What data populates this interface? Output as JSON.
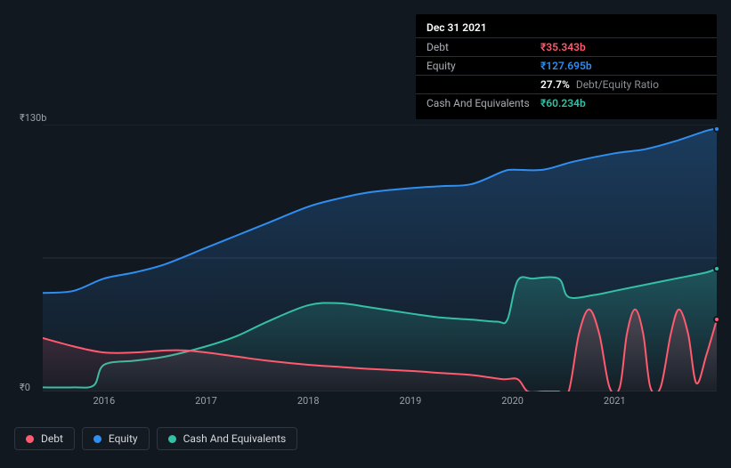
{
  "tooltip": {
    "date": "Dec 31 2021",
    "rows": [
      {
        "label": "Debt",
        "value": "₹35.343b",
        "color": "#ff5a6e"
      },
      {
        "label": "Equity",
        "value": "₹127.695b",
        "color": "#2f8ef0"
      },
      {
        "label": "",
        "value": "27.7%",
        "suffix": "Debt/Equity Ratio",
        "color": "#ffffff"
      },
      {
        "label": "Cash And Equivalents",
        "value": "₹60.234b",
        "color": "#34c0a6"
      }
    ]
  },
  "chart": {
    "type": "area",
    "background_color": "#12181f",
    "grid_color": "#2a3038",
    "ylim": [
      0,
      130
    ],
    "y_ticks": [
      {
        "v": 130,
        "label": "₹130b"
      },
      {
        "v": 0,
        "label": "₹0"
      }
    ],
    "x_start_year": 2015.4,
    "x_end_year": 2022.0,
    "x_ticks": [
      2016,
      2017,
      2018,
      2019,
      2020,
      2021
    ],
    "series": [
      {
        "name": "Equity",
        "color": "#2f8ef0",
        "fill_top": "rgba(47,142,240,0.30)",
        "fill_bottom": "rgba(47,142,240,0.02)",
        "line_width": 2,
        "points": [
          [
            2015.4,
            48
          ],
          [
            2015.7,
            49
          ],
          [
            2016.0,
            55
          ],
          [
            2016.3,
            58
          ],
          [
            2016.6,
            62
          ],
          [
            2017.0,
            70
          ],
          [
            2017.3,
            76
          ],
          [
            2017.6,
            82
          ],
          [
            2018.0,
            90
          ],
          [
            2018.3,
            94
          ],
          [
            2018.6,
            97
          ],
          [
            2019.0,
            99
          ],
          [
            2019.3,
            100
          ],
          [
            2019.6,
            101
          ],
          [
            2019.9,
            107
          ],
          [
            2020.0,
            108
          ],
          [
            2020.3,
            108
          ],
          [
            2020.6,
            112
          ],
          [
            2021.0,
            116
          ],
          [
            2021.3,
            118
          ],
          [
            2021.6,
            122
          ],
          [
            2021.9,
            127
          ],
          [
            2022.0,
            128
          ]
        ]
      },
      {
        "name": "Cash And Equivalents",
        "color": "#34c0a6",
        "fill_top": "rgba(52,192,166,0.28)",
        "fill_bottom": "rgba(52,192,166,0.02)",
        "line_width": 2,
        "points": [
          [
            2015.4,
            2
          ],
          [
            2015.7,
            2
          ],
          [
            2015.9,
            3
          ],
          [
            2016.0,
            13
          ],
          [
            2016.3,
            15
          ],
          [
            2016.6,
            17
          ],
          [
            2017.0,
            22
          ],
          [
            2017.3,
            27
          ],
          [
            2017.6,
            34
          ],
          [
            2018.0,
            42
          ],
          [
            2018.3,
            43
          ],
          [
            2018.6,
            41
          ],
          [
            2019.0,
            38
          ],
          [
            2019.3,
            36
          ],
          [
            2019.6,
            35
          ],
          [
            2019.85,
            34
          ],
          [
            2019.95,
            35
          ],
          [
            2020.05,
            54
          ],
          [
            2020.2,
            55
          ],
          [
            2020.45,
            55
          ],
          [
            2020.55,
            46
          ],
          [
            2020.8,
            47
          ],
          [
            2021.0,
            49
          ],
          [
            2021.3,
            52
          ],
          [
            2021.6,
            55
          ],
          [
            2021.9,
            58
          ],
          [
            2022.0,
            60
          ]
        ]
      },
      {
        "name": "Debt",
        "color": "#ff5a6e",
        "fill_top": "rgba(255,90,110,0.22)",
        "fill_bottom": "rgba(255,90,110,0.02)",
        "line_width": 2,
        "points": [
          [
            2015.4,
            26
          ],
          [
            2015.7,
            22
          ],
          [
            2016.0,
            19
          ],
          [
            2016.3,
            19
          ],
          [
            2016.6,
            20
          ],
          [
            2016.8,
            20
          ],
          [
            2017.0,
            19
          ],
          [
            2017.3,
            17
          ],
          [
            2017.6,
            15
          ],
          [
            2018.0,
            13
          ],
          [
            2018.3,
            12
          ],
          [
            2018.6,
            11
          ],
          [
            2019.0,
            10
          ],
          [
            2019.3,
            9
          ],
          [
            2019.6,
            8
          ],
          [
            2019.9,
            6
          ],
          [
            2020.05,
            6
          ],
          [
            2020.15,
            0
          ],
          [
            2020.3,
            0
          ],
          [
            2020.45,
            0
          ],
          [
            2020.55,
            0
          ],
          [
            2020.65,
            28
          ],
          [
            2020.75,
            40
          ],
          [
            2020.85,
            28
          ],
          [
            2020.95,
            2
          ],
          [
            2021.05,
            2
          ],
          [
            2021.12,
            28
          ],
          [
            2021.2,
            40
          ],
          [
            2021.28,
            28
          ],
          [
            2021.35,
            2
          ],
          [
            2021.45,
            2
          ],
          [
            2021.55,
            28
          ],
          [
            2021.63,
            40
          ],
          [
            2021.72,
            28
          ],
          [
            2021.8,
            4
          ],
          [
            2021.9,
            18
          ],
          [
            2022.0,
            35
          ]
        ]
      }
    ],
    "end_markers": [
      {
        "series": "Equity",
        "color": "#2f8ef0",
        "y": 128
      },
      {
        "series": "Cash And Equivalents",
        "color": "#34c0a6",
        "y": 60
      },
      {
        "series": "Debt",
        "color": "#ff5a6e",
        "y": 35
      }
    ]
  },
  "legend": [
    {
      "label": "Debt",
      "color": "#ff5a6e"
    },
    {
      "label": "Equity",
      "color": "#2f8ef0"
    },
    {
      "label": "Cash And Equivalents",
      "color": "#34c0a6"
    }
  ]
}
